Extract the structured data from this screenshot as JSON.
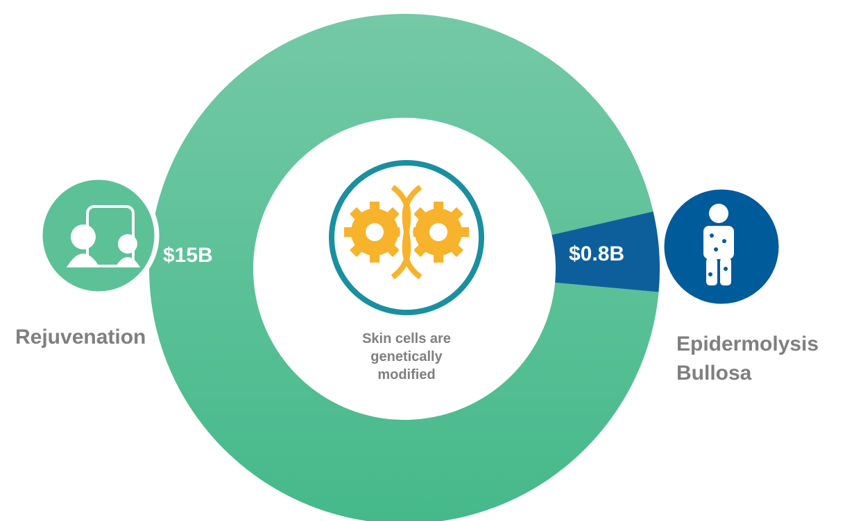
{
  "chart_data": {
    "type": "pie",
    "donut": true,
    "categories": [
      "Rejuvenation",
      "Epidermolysis Bullosa"
    ],
    "values": [
      15,
      0.8
    ],
    "value_labels": [
      "$15B",
      "$0.8B"
    ],
    "colors": [
      "#5cc197",
      "#0d5f9c"
    ],
    "center_text": "Skin cells are genetically modified"
  }
}
